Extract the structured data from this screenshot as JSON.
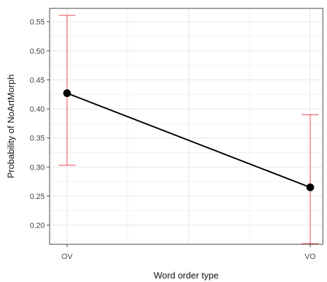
{
  "chart_data": {
    "type": "line",
    "title": "",
    "xlabel": "Word order type",
    "ylabel": "Probability of NoArtMorph",
    "categories": [
      "OV",
      "VO"
    ],
    "series": [
      {
        "values": [
          0.427,
          0.265
        ],
        "lower": [
          0.303,
          0.168
        ],
        "upper": [
          0.561,
          0.39
        ]
      }
    ],
    "ylim": [
      0.167,
      0.573
    ],
    "yticks": [
      0.2,
      0.25,
      0.3,
      0.35,
      0.4,
      0.45,
      0.5,
      0.55
    ],
    "ytick_labels": [
      "0.20",
      "0.25",
      "0.30",
      "0.35",
      "0.40",
      "0.45",
      "0.50",
      "0.55"
    ],
    "grid": true,
    "legend": "none",
    "colors": {
      "line": "#000000",
      "points": "#000000",
      "error_bars": "#e8454a"
    }
  }
}
